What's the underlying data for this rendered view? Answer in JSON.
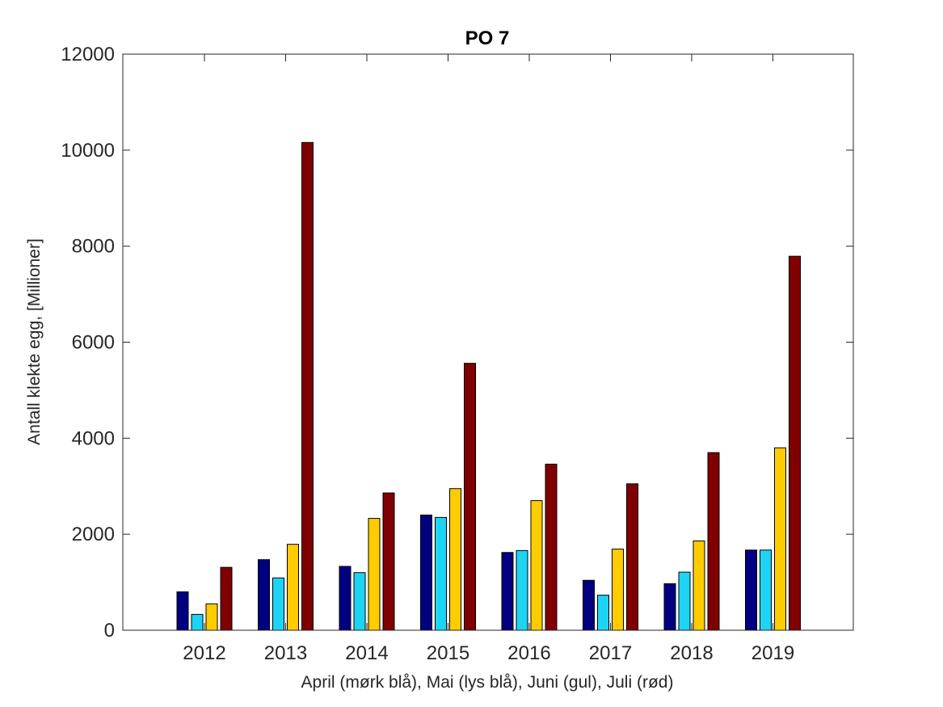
{
  "chart_data": {
    "type": "bar",
    "title": "PO 7",
    "xlabel": "April (mørk blå), Mai (lys blå), Juni (gul), Juli (rød)",
    "ylabel": "Antall klekte egg, [Millioner]",
    "categories": [
      "2012",
      "2013",
      "2014",
      "2015",
      "2016",
      "2017",
      "2018",
      "2019"
    ],
    "ylim": [
      0,
      12000
    ],
    "yticks": [
      0,
      2000,
      4000,
      6000,
      8000,
      10000,
      12000
    ],
    "ytick_labels": [
      "0",
      "2000",
      "4000",
      "6000",
      "8000",
      "10000",
      "12000"
    ],
    "grid": false,
    "series": [
      {
        "color": "#000080",
        "values": [
          800,
          1470,
          1330,
          2400,
          1620,
          1040,
          970,
          1670
        ]
      },
      {
        "color": "#1ed4f5",
        "values": [
          330,
          1090,
          1200,
          2350,
          1660,
          730,
          1210,
          1670
        ]
      },
      {
        "color": "#ffcc00",
        "values": [
          550,
          1790,
          2330,
          2950,
          2700,
          1690,
          1860,
          3800
        ]
      },
      {
        "color": "#800000",
        "values": [
          1310,
          10160,
          2860,
          5560,
          3460,
          3050,
          3700,
          7790
        ]
      }
    ]
  }
}
